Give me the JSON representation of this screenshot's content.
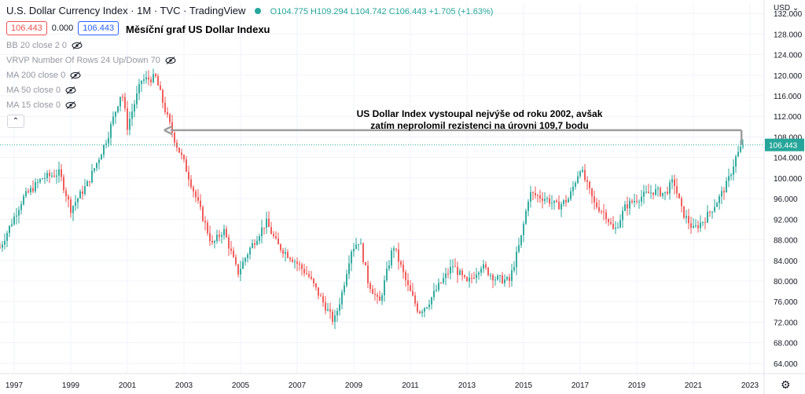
{
  "header": {
    "title": "U.S. Dollar Currency Index · 1M · TVC · TradingView",
    "ohlc": "O104.775 H109.294 L104.742 C106.443 +1.705 (+1.63%)",
    "price_sell": "106.443",
    "spread": "0.000",
    "price_buy": "106.443",
    "currency": "USD"
  },
  "annotation_title": "Měsíční graf US Dollar Indexu",
  "indicators": [
    "BB 20 close 2 0",
    "VRVP Number Of Rows 24 Up/Down 70",
    "MA 200 close 0",
    "MA 50 close 0",
    "MA 15 close 0"
  ],
  "annotation": {
    "line1": "US Dollar Index vystoupal nejvýše od roku 2002, avšak",
    "line2": "zatím neprolomil rezistenci na úrovni 109,7 bodu"
  },
  "icons": {
    "eye": "eye-hidden-icon",
    "collapse": "chevron-up-icon",
    "settings": "gear-icon",
    "live": "live-dot-icon"
  },
  "colors": {
    "up": "#26a69a",
    "down": "#ef5350",
    "arrow": "#9e9e9e",
    "last_price": "#26a69a",
    "grid": "#f0f3fa"
  },
  "chart_data": {
    "type": "candlestick",
    "title": "U.S. Dollar Currency Index",
    "interval": "1M",
    "y_axis": {
      "min": 62,
      "max": 134,
      "ticks": [
        64,
        68,
        72,
        76,
        80,
        84,
        88,
        92,
        96,
        100,
        104,
        108,
        112,
        116,
        120,
        124,
        128,
        132
      ],
      "tick_labels": [
        "64.000",
        "68.000",
        "72.000",
        "76.000",
        "80.000",
        "84.000",
        "88.000",
        "92.000",
        "96.000",
        "100.000",
        "104.000",
        "108.000",
        "112.000",
        "116.000",
        "120.000",
        "124.000",
        "128.000",
        "132.000"
      ]
    },
    "x_axis": {
      "start": 1996.5,
      "end": 2023.5,
      "ticks": [
        1997,
        1999,
        2001,
        2003,
        2005,
        2007,
        2009,
        2011,
        2013,
        2015,
        2017,
        2019,
        2021,
        2023
      ],
      "tick_labels": [
        "1997",
        "1999",
        "2001",
        "2003",
        "2005",
        "2007",
        "2009",
        "2011",
        "2013",
        "2015",
        "2017",
        "2019",
        "2021",
        "2023"
      ]
    },
    "last_price": 106.443,
    "last_price_label": "106.443",
    "resistance": 109.7,
    "arrow": {
      "from": [
        2022.7,
        109.3
      ],
      "to": [
        2002.3,
        109.3
      ]
    },
    "key_points": [
      [
        1996.5,
        86.5
      ],
      [
        1997.3,
        96.0
      ],
      [
        1998.0,
        100.0
      ],
      [
        1998.6,
        101.0
      ],
      [
        1999.0,
        94.0
      ],
      [
        1999.6,
        99.0
      ],
      [
        2000.0,
        104.0
      ],
      [
        2000.3,
        108.0
      ],
      [
        2000.8,
        117.0
      ],
      [
        2001.0,
        110.0
      ],
      [
        2001.5,
        119.0
      ],
      [
        2002.0,
        119.5
      ],
      [
        2002.4,
        112.0
      ],
      [
        2002.7,
        107.0
      ],
      [
        2003.0,
        103.0
      ],
      [
        2003.5,
        95.0
      ],
      [
        2004.0,
        87.0
      ],
      [
        2004.4,
        90.0
      ],
      [
        2004.9,
        81.5
      ],
      [
        2005.3,
        86.0
      ],
      [
        2005.9,
        91.5
      ],
      [
        2006.3,
        87.0
      ],
      [
        2006.9,
        84.0
      ],
      [
        2007.4,
        81.0
      ],
      [
        2007.9,
        76.0
      ],
      [
        2008.3,
        72.0
      ],
      [
        2008.6,
        78.0
      ],
      [
        2008.9,
        86.0
      ],
      [
        2009.2,
        88.0
      ],
      [
        2009.5,
        80.0
      ],
      [
        2009.9,
        75.5
      ],
      [
        2010.4,
        87.0
      ],
      [
        2010.9,
        79.0
      ],
      [
        2011.3,
        74.0
      ],
      [
        2011.6,
        75.5
      ],
      [
        2012.0,
        79.0
      ],
      [
        2012.5,
        83.0
      ],
      [
        2013.0,
        79.5
      ],
      [
        2013.5,
        83.0
      ],
      [
        2014.0,
        80.5
      ],
      [
        2014.5,
        80.0
      ],
      [
        2014.9,
        88.0
      ],
      [
        2015.2,
        97.0
      ],
      [
        2015.8,
        96.0
      ],
      [
        2016.2,
        94.5
      ],
      [
        2016.6,
        96.0
      ],
      [
        2017.0,
        102.0
      ],
      [
        2017.5,
        95.0
      ],
      [
        2017.9,
        93.0
      ],
      [
        2018.2,
        89.5
      ],
      [
        2018.6,
        94.5
      ],
      [
        2019.0,
        96.0
      ],
      [
        2019.6,
        97.5
      ],
      [
        2020.0,
        97.0
      ],
      [
        2020.3,
        99.5
      ],
      [
        2020.6,
        93.5
      ],
      [
        2021.0,
        90.0
      ],
      [
        2021.4,
        92.0
      ],
      [
        2021.9,
        96.0
      ],
      [
        2022.2,
        99.0
      ],
      [
        2022.5,
        104.0
      ],
      [
        2022.75,
        106.443
      ]
    ]
  }
}
